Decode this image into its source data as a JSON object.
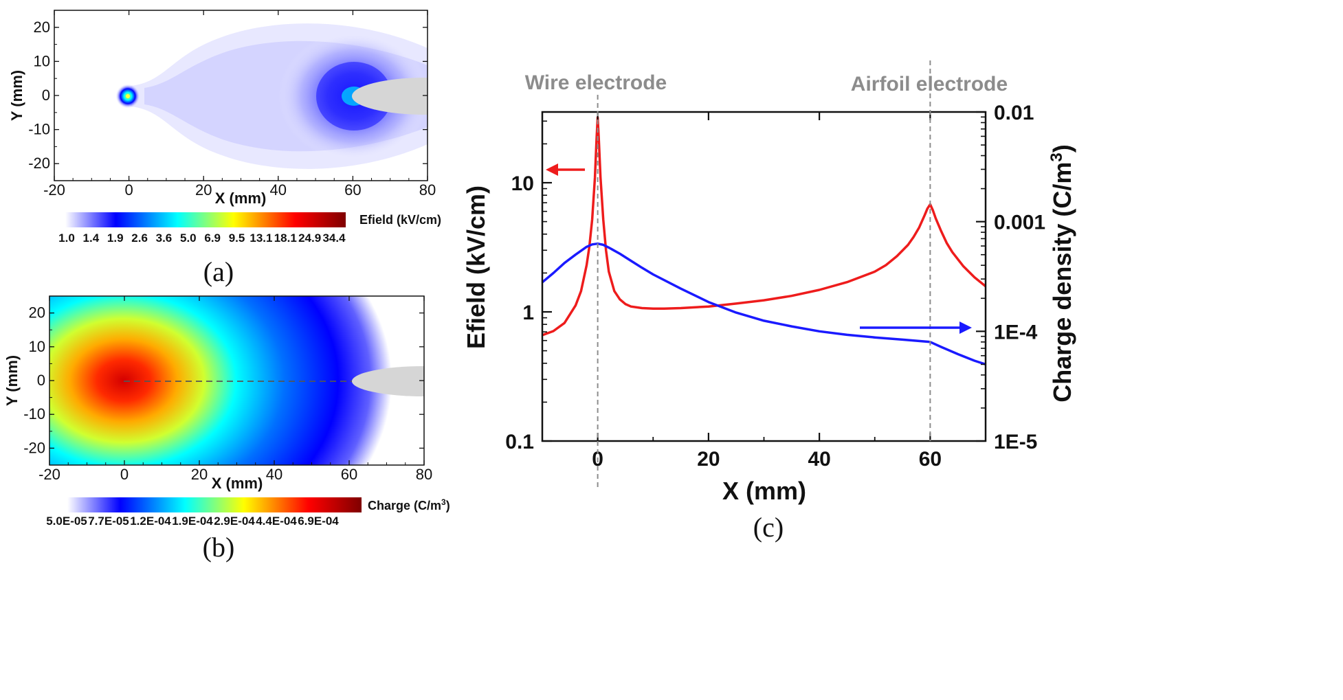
{
  "chart_data": [
    {
      "panel": "(a)",
      "type": "heatmap",
      "xlabel": "X (mm)",
      "ylabel": "Y (mm)",
      "xlim": [
        -20,
        80
      ],
      "ylim": [
        -25,
        25
      ],
      "xticks": [
        "-20",
        "0",
        "20",
        "40",
        "60",
        "80"
      ],
      "yticks": [
        "20",
        "10",
        "0",
        "-10",
        "-20"
      ],
      "colorbar": {
        "title": "Efield (kV/cm)",
        "ticks": [
          "1.0",
          "1.4",
          "1.9",
          "2.6",
          "3.6",
          "5.0",
          "6.9",
          "9.5",
          "13.1",
          "18.1",
          "24.9",
          "34.4"
        ],
        "colors": [
          "#ffffff",
          "#0000ff",
          "#00ffff",
          "#ffff00",
          "#ff0000",
          "#7f0000"
        ]
      },
      "features": {
        "wire_electrode_x": 0,
        "airfoil_leading_edge_x": 60
      }
    },
    {
      "panel": "(b)",
      "type": "heatmap",
      "xlabel": "X (mm)",
      "ylabel": "Y (mm)",
      "xlim": [
        -20,
        80
      ],
      "ylim": [
        -25,
        25
      ],
      "xticks": [
        "-20",
        "0",
        "20",
        "40",
        "60",
        "80"
      ],
      "yticks": [
        "20",
        "10",
        "0",
        "-10",
        "-20"
      ],
      "colorbar": {
        "title": "Charge (C/m",
        "title_sup": "3",
        "title_end": ")",
        "ticks": [
          "5.0E-05",
          "7.7E-05",
          "1.2E-04",
          "1.9E-04",
          "2.9E-04",
          "4.4E-04",
          "6.9E-04"
        ],
        "colors": [
          "#ffffff",
          "#0000ff",
          "#00ffff",
          "#ffff00",
          "#ff0000",
          "#7f0000"
        ]
      },
      "features": {
        "wire_electrode_x": 0,
        "airfoil_leading_edge_x": 62
      }
    },
    {
      "panel": "(c)",
      "type": "line",
      "xlabel": "X (mm)",
      "ylabel_left": "Efield (kV/cm)",
      "ylabel_right": "Charge density  (C/m",
      "ylabel_right_sup": "3",
      "ylabel_right_end": ")",
      "xlim": [
        -10,
        70
      ],
      "ylim_left": [
        0.1,
        35
      ],
      "ylim_right": [
        1e-05,
        0.01
      ],
      "y_scale": "log",
      "xticks": [
        "0",
        "20",
        "40",
        "60"
      ],
      "yticks_left": [
        "0.1",
        "1",
        "10"
      ],
      "yticks_right": [
        "1E-5",
        "1E-4",
        "0.001",
        "0.01"
      ],
      "annotations": [
        "Wire electrode",
        "Airfoil electrode"
      ],
      "series": [
        {
          "color": "#ee1c1c",
          "axis": "left",
          "x": [
            -10,
            -8,
            -6,
            -4,
            -3,
            -2,
            -1.5,
            -1,
            -0.5,
            -0.2,
            0,
            0.2,
            0.5,
            1,
            1.5,
            2,
            3,
            4,
            5,
            6,
            8,
            10,
            12,
            15,
            20,
            25,
            30,
            35,
            40,
            45,
            50,
            52,
            54,
            56,
            57,
            58,
            59,
            59.5,
            60,
            60.5,
            61,
            62,
            63,
            64,
            66,
            68,
            70
          ],
          "y": [
            0.66,
            0.71,
            0.82,
            1.12,
            1.45,
            2.3,
            3.2,
            5.2,
            11,
            22,
            32,
            22,
            11,
            5.2,
            3.0,
            2.05,
            1.45,
            1.25,
            1.15,
            1.1,
            1.07,
            1.06,
            1.06,
            1.07,
            1.1,
            1.16,
            1.23,
            1.33,
            1.48,
            1.7,
            2.05,
            2.3,
            2.7,
            3.3,
            3.8,
            4.5,
            5.6,
            6.3,
            6.8,
            6.1,
            5.3,
            4.2,
            3.4,
            2.9,
            2.25,
            1.85,
            1.58
          ]
        },
        {
          "color": "#1a1aff",
          "axis": "right",
          "x": [
            -10,
            -8,
            -6,
            -4,
            -2,
            -1,
            0,
            1,
            2,
            4,
            6,
            8,
            10,
            15,
            20,
            25,
            30,
            35,
            40,
            45,
            50,
            55,
            60,
            62,
            65,
            68,
            70
          ],
          "y": [
            0.00028,
            0.00034,
            0.00042,
            0.0005,
            0.00059,
            0.00062,
            0.00063,
            0.000615,
            0.00058,
            0.00051,
            0.00044,
            0.00038,
            0.00033,
            0.000245,
            0.000185,
            0.000148,
            0.000125,
            0.000111,
            0.0001,
            9.3e-05,
            8.8e-05,
            8.4e-05,
            8e-05,
            7.2e-05,
            6.2e-05,
            5.4e-05,
            5e-05
          ]
        }
      ]
    }
  ],
  "labels": {
    "a": "(a)",
    "b": "(b)",
    "c": "(c)"
  }
}
